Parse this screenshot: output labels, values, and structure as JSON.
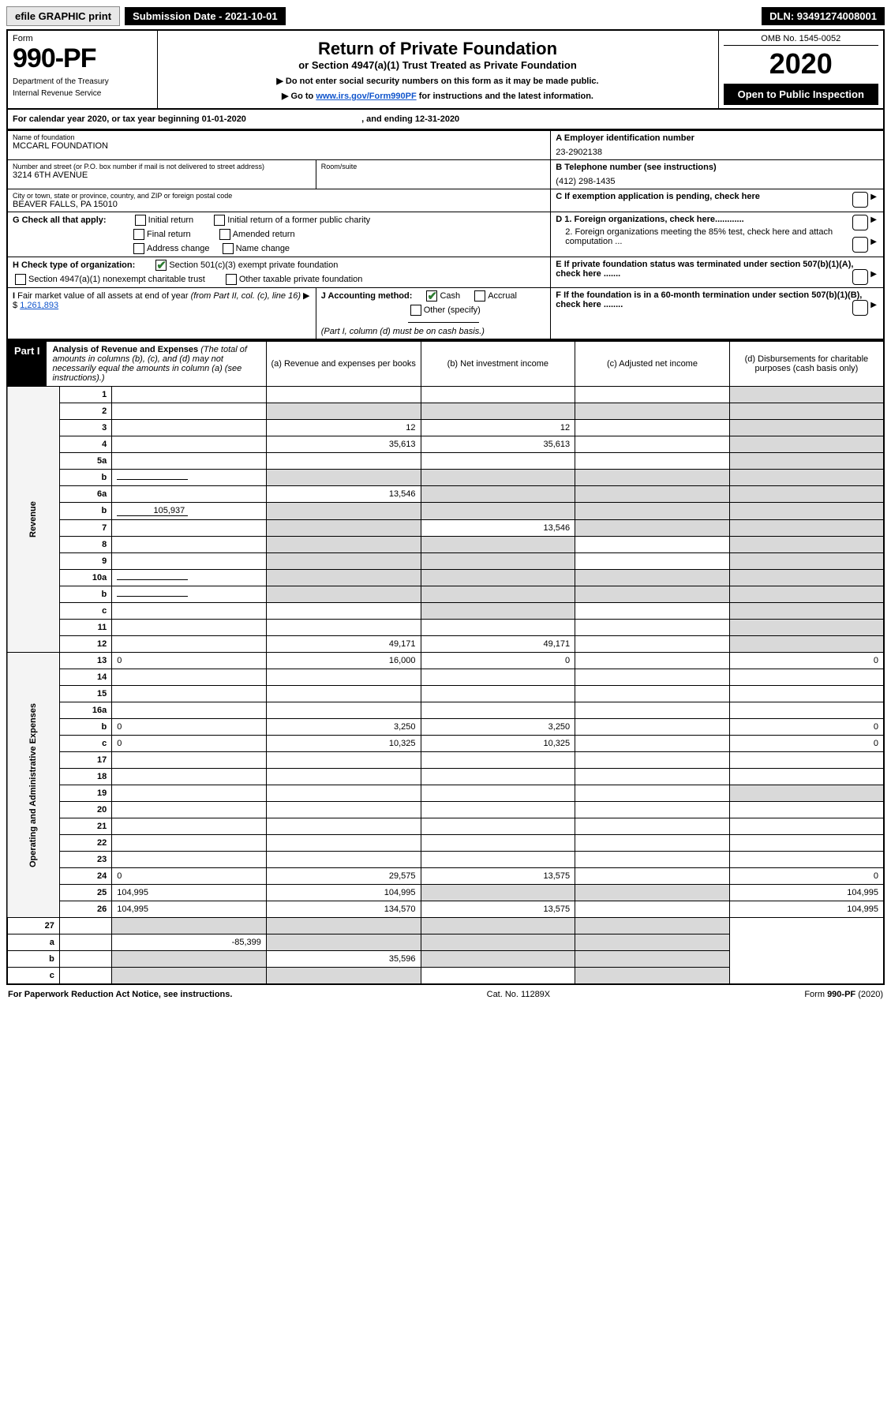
{
  "topbar": {
    "efile": "efile GRAPHIC print",
    "submission": "Submission Date - 2021-10-01",
    "dln": "DLN: 93491274008001"
  },
  "header": {
    "form_label": "Form",
    "form_number": "990-PF",
    "dept1": "Department of the Treasury",
    "dept2": "Internal Revenue Service",
    "title": "Return of Private Foundation",
    "subtitle": "or Section 4947(a)(1) Trust Treated as Private Foundation",
    "instr1": "▶ Do not enter social security numbers on this form as it may be made public.",
    "instr2_pre": "▶ Go to ",
    "instr2_link": "www.irs.gov/Form990PF",
    "instr2_post": " for instructions and the latest information.",
    "omb": "OMB No. 1545-0052",
    "year": "2020",
    "open_pub": "Open to Public Inspection"
  },
  "cal_year": {
    "pre": "For calendar year 2020, or tax year beginning ",
    "begin": "01-01-2020",
    "mid": " , and ending ",
    "end": "12-31-2020"
  },
  "info": {
    "name_label": "Name of foundation",
    "name": "MCCARL FOUNDATION",
    "addr_label": "Number and street (or P.O. box number if mail is not delivered to street address)",
    "addr": "3214 6TH AVENUE",
    "room_label": "Room/suite",
    "city_label": "City or town, state or province, country, and ZIP or foreign postal code",
    "city": "BEAVER FALLS, PA  15010",
    "a_label": "A Employer identification number",
    "a_val": "23-2902138",
    "b_label": "B Telephone number (see instructions)",
    "b_val": "(412) 298-1435",
    "c_label": "C If exemption application is pending, check here",
    "g_label": "G Check all that apply:",
    "g_opts": [
      "Initial return",
      "Initial return of a former public charity",
      "Final return",
      "Amended return",
      "Address change",
      "Name change"
    ],
    "d1": "D 1. Foreign organizations, check here............",
    "d2": "2. Foreign organizations meeting the 85% test, check here and attach computation ...",
    "h_label": "H Check type of organization:",
    "h1": "Section 501(c)(3) exempt private foundation",
    "h2": "Section 4947(a)(1) nonexempt charitable trust",
    "h3": "Other taxable private foundation",
    "e_label": "E  If private foundation status was terminated under section 507(b)(1)(A), check here .......",
    "i_label": "I Fair market value of all assets at end of year (from Part II, col. (c), line 16) ▶ $",
    "i_val": "1,261,893",
    "j_label": "J Accounting method:",
    "j_cash": "Cash",
    "j_accrual": "Accrual",
    "j_other": "Other (specify)",
    "j_note": "(Part I, column (d) must be on cash basis.)",
    "f_label": "F  If the foundation is in a 60-month termination under section 507(b)(1)(B), check here ........"
  },
  "part1": {
    "label": "Part I",
    "title": "Analysis of Revenue and Expenses",
    "title_note": "(The total of amounts in columns (b), (c), and (d) may not necessarily equal the amounts in column (a) (see instructions).)",
    "col_a": "(a)    Revenue and expenses per books",
    "col_b": "(b)  Net investment income",
    "col_c": "(c)  Adjusted net income",
    "col_d": "(d)  Disbursements for charitable purposes (cash basis only)"
  },
  "sections": {
    "revenue": "Revenue",
    "opex": "Operating and Administrative Expenses"
  },
  "lines": [
    {
      "n": "1",
      "d": "",
      "a": "",
      "b": "",
      "c": "",
      "d_shade": true
    },
    {
      "n": "2",
      "d": "",
      "nodots": true,
      "a": "",
      "b": "",
      "c": "",
      "a_shade": true,
      "b_shade": true,
      "c_shade": true,
      "d_shade": true,
      "checked": true
    },
    {
      "n": "3",
      "d": "",
      "a": "12",
      "b": "12",
      "c": "",
      "d_shade": true
    },
    {
      "n": "4",
      "d": "",
      "a": "35,613",
      "b": "35,613",
      "c": "",
      "d_shade": true
    },
    {
      "n": "5a",
      "d": "",
      "a": "",
      "b": "",
      "c": "",
      "d_shade": true
    },
    {
      "n": "b",
      "d": "",
      "inline": true,
      "a": "",
      "b": "",
      "c": "",
      "a_shade": true,
      "b_shade": true,
      "c_shade": true,
      "d_shade": true
    },
    {
      "n": "6a",
      "d": "",
      "a": "13,546",
      "b": "",
      "c": "",
      "b_shade": true,
      "c_shade": true,
      "d_shade": true
    },
    {
      "n": "b",
      "d": "",
      "inline_val": "105,937",
      "a": "",
      "b": "",
      "c": "",
      "a_shade": true,
      "b_shade": true,
      "c_shade": true,
      "d_shade": true
    },
    {
      "n": "7",
      "d": "",
      "a": "",
      "b": "13,546",
      "c": "",
      "a_shade": true,
      "c_shade": true,
      "d_shade": true
    },
    {
      "n": "8",
      "d": "",
      "a": "",
      "b": "",
      "c": "",
      "a_shade": true,
      "b_shade": true,
      "d_shade": true
    },
    {
      "n": "9",
      "d": "",
      "a": "",
      "b": "",
      "c": "",
      "a_shade": true,
      "b_shade": true,
      "d_shade": true
    },
    {
      "n": "10a",
      "d": "",
      "inline": true,
      "a": "",
      "b": "",
      "c": "",
      "a_shade": true,
      "b_shade": true,
      "c_shade": true,
      "d_shade": true
    },
    {
      "n": "b",
      "d": "",
      "inline": true,
      "a": "",
      "b": "",
      "c": "",
      "a_shade": true,
      "b_shade": true,
      "c_shade": true,
      "d_shade": true
    },
    {
      "n": "c",
      "d": "",
      "a": "",
      "b": "",
      "c": "",
      "b_shade": true,
      "d_shade": true
    },
    {
      "n": "11",
      "d": "",
      "a": "",
      "b": "",
      "c": "",
      "d_shade": true
    },
    {
      "n": "12",
      "d": "",
      "a": "49,171",
      "b": "49,171",
      "c": "",
      "d_shade": true
    }
  ],
  "opex_lines": [
    {
      "n": "13",
      "d": "0",
      "a": "16,000",
      "b": "0",
      "c": ""
    },
    {
      "n": "14",
      "d": "",
      "a": "",
      "b": "",
      "c": ""
    },
    {
      "n": "15",
      "d": "",
      "a": "",
      "b": "",
      "c": ""
    },
    {
      "n": "16a",
      "d": "",
      "a": "",
      "b": "",
      "c": ""
    },
    {
      "n": "b",
      "d": "0",
      "a": "3,250",
      "b": "3,250",
      "c": ""
    },
    {
      "n": "c",
      "d": "0",
      "a": "10,325",
      "b": "10,325",
      "c": ""
    },
    {
      "n": "17",
      "d": "",
      "a": "",
      "b": "",
      "c": ""
    },
    {
      "n": "18",
      "d": "",
      "a": "",
      "b": "",
      "c": ""
    },
    {
      "n": "19",
      "d": "",
      "a": "",
      "b": "",
      "c": "",
      "d_shade": true
    },
    {
      "n": "20",
      "d": "",
      "a": "",
      "b": "",
      "c": ""
    },
    {
      "n": "21",
      "d": "",
      "a": "",
      "b": "",
      "c": ""
    },
    {
      "n": "22",
      "d": "",
      "a": "",
      "b": "",
      "c": ""
    },
    {
      "n": "23",
      "d": "",
      "a": "",
      "b": "",
      "c": ""
    },
    {
      "n": "24",
      "d": "0",
      "a": "29,575",
      "b": "13,575",
      "c": ""
    },
    {
      "n": "25",
      "d": "104,995",
      "a": "104,995",
      "b": "",
      "c": "",
      "b_shade": true,
      "c_shade": true
    },
    {
      "n": "26",
      "d": "104,995",
      "a": "134,570",
      "b": "13,575",
      "c": ""
    }
  ],
  "line27": [
    {
      "n": "27",
      "d": "",
      "a": "",
      "b": "",
      "c": "",
      "a_shade": true,
      "b_shade": true,
      "c_shade": true,
      "d_shade": true
    },
    {
      "n": "a",
      "d": "",
      "a": "-85,399",
      "b": "",
      "c": "",
      "b_shade": true,
      "c_shade": true,
      "d_shade": true
    },
    {
      "n": "b",
      "d": "",
      "a": "",
      "b": "35,596",
      "c": "",
      "a_shade": true,
      "c_shade": true,
      "d_shade": true
    },
    {
      "n": "c",
      "d": "",
      "a": "",
      "b": "",
      "c": "",
      "a_shade": true,
      "b_shade": true,
      "d_shade": true
    }
  ],
  "footer": {
    "left": "For Paperwork Reduction Act Notice, see instructions.",
    "mid": "Cat. No. 11289X",
    "right": "Form 990-PF (2020)"
  },
  "style": {
    "checked_color": "#2e7d32",
    "link_color": "#1155cc",
    "shade": "#d9d9d9",
    "arrow": "▶"
  }
}
